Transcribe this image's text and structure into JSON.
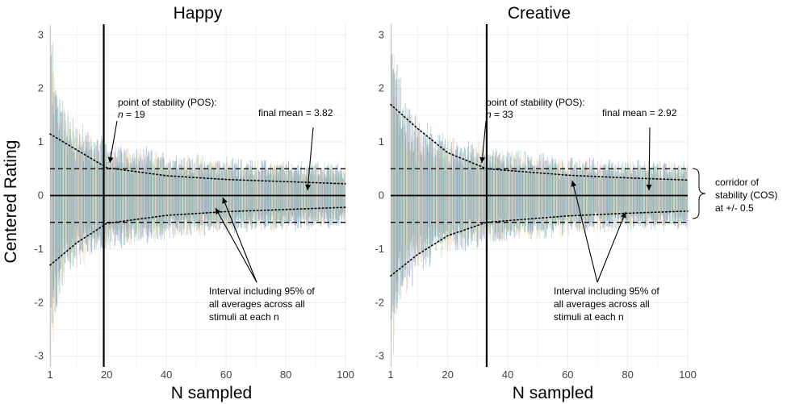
{
  "chart_data": {
    "type": "line",
    "ylabel": "Centered Rating",
    "xlabel": "N sampled",
    "xlim": [
      1,
      100
    ],
    "ylim": [
      -3.2,
      3.2
    ],
    "x_ticks": [
      1,
      20,
      40,
      60,
      80,
      100
    ],
    "y_ticks": [
      -3,
      -2,
      -1,
      0,
      1,
      2,
      3
    ],
    "grid": true,
    "corridor_of_stability": 0.5,
    "corridor_label": [
      "corridor of",
      "stability (COS)",
      "at +/- 0.5"
    ],
    "panels": [
      {
        "title": "Happy",
        "pos": 19,
        "final_mean": 3.82,
        "interval_95_upper": [
          {
            "n": 1,
            "y": 1.15
          },
          {
            "n": 10,
            "y": 0.85
          },
          {
            "n": 20,
            "y": 0.52
          },
          {
            "n": 40,
            "y": 0.37
          },
          {
            "n": 60,
            "y": 0.3
          },
          {
            "n": 80,
            "y": 0.26
          },
          {
            "n": 100,
            "y": 0.22
          }
        ],
        "interval_95_lower": [
          {
            "n": 1,
            "y": -1.3
          },
          {
            "n": 10,
            "y": -0.88
          },
          {
            "n": 20,
            "y": -0.52
          },
          {
            "n": 40,
            "y": -0.37
          },
          {
            "n": 60,
            "y": -0.3
          },
          {
            "n": 80,
            "y": -0.26
          },
          {
            "n": 100,
            "y": -0.22
          }
        ],
        "annotations": {
          "pos_line1": "point of stability (POS):",
          "pos_n_label": "n",
          "pos_n_value": " = 19",
          "final_mean_label": "final mean = 3.82",
          "interval_lines": [
            "Interval  including 95% of",
            "all averages across all",
            "stimuli at each n"
          ]
        }
      },
      {
        "title": "Creative",
        "pos": 33,
        "final_mean": 2.92,
        "interval_95_upper": [
          {
            "n": 1,
            "y": 1.7
          },
          {
            "n": 10,
            "y": 1.25
          },
          {
            "n": 20,
            "y": 0.8
          },
          {
            "n": 33,
            "y": 0.5
          },
          {
            "n": 60,
            "y": 0.38
          },
          {
            "n": 80,
            "y": 0.33
          },
          {
            "n": 100,
            "y": 0.29
          }
        ],
        "interval_95_lower": [
          {
            "n": 1,
            "y": -1.5
          },
          {
            "n": 10,
            "y": -1.1
          },
          {
            "n": 20,
            "y": -0.75
          },
          {
            "n": 33,
            "y": -0.5
          },
          {
            "n": 60,
            "y": -0.38
          },
          {
            "n": 80,
            "y": -0.33
          },
          {
            "n": 100,
            "y": -0.29
          }
        ],
        "annotations": {
          "pos_line1": "point of stability (POS):",
          "pos_n_label": "n",
          "pos_n_value": " = 33",
          "final_mean_label": "final mean = 2.92",
          "interval_lines": [
            "Interval  including 95% of",
            "all averages across all",
            "stimuli at each n"
          ]
        }
      }
    ],
    "stimulus_palette": [
      "#5aa9a3",
      "#4f9fbf",
      "#9ccc8f",
      "#e8d787",
      "#e9a3a3",
      "#5c6bb5",
      "#7fc6a4",
      "#b6a2d4",
      "#f2c28a",
      "#3f83b8"
    ]
  }
}
